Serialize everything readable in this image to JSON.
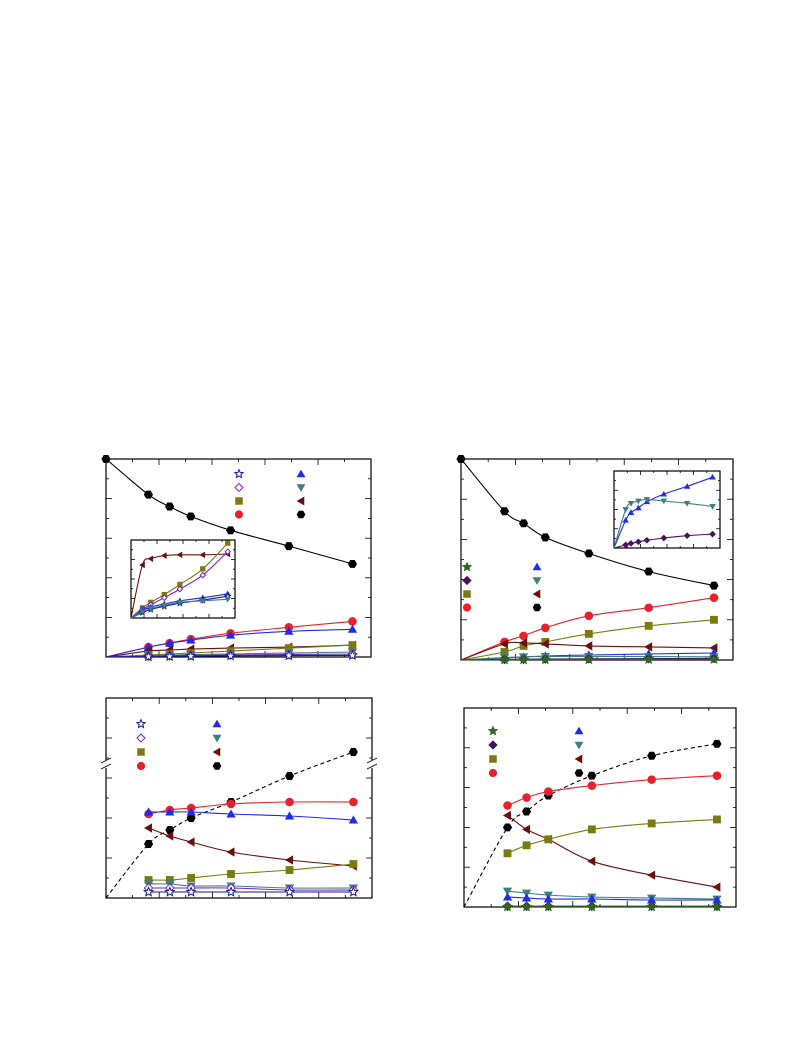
{
  "colors": {
    "black": "#000000",
    "red": "#e8212b",
    "blue": "#1f2bf0",
    "teal": "#3f7f7f",
    "olive": "#7a7a10",
    "darkred": "#6b0f0f",
    "purple": "#7a22c8",
    "darkpurple": "#4b1060",
    "navy": "#1a1a8c",
    "green": "#2a6a1a"
  },
  "chart_data": [
    {
      "id": "panel-top-left",
      "type": "scatter",
      "xlim": [
        0,
        10
      ],
      "ylim": [
        0,
        1
      ],
      "grid": false,
      "legend_position": "top-right",
      "series": [
        {
          "marker": "hexagon",
          "color": "black",
          "fill": true,
          "x": [
            0.0,
            1.6,
            2.4,
            3.2,
            4.7,
            6.9,
            9.3
          ],
          "y": [
            1.0,
            0.82,
            0.76,
            0.71,
            0.64,
            0.56,
            0.47
          ]
        },
        {
          "marker": "circle",
          "color": "red",
          "fill": true,
          "x": [
            0.0,
            1.6,
            2.4,
            3.2,
            4.7,
            6.9,
            9.3
          ],
          "y": [
            0.0,
            0.05,
            0.07,
            0.09,
            0.12,
            0.15,
            0.18
          ]
        },
        {
          "marker": "triangle-up",
          "color": "blue",
          "fill": true,
          "x": [
            0.0,
            1.6,
            2.4,
            3.2,
            4.7,
            6.9,
            9.3
          ],
          "y": [
            0.0,
            0.05,
            0.07,
            0.085,
            0.11,
            0.13,
            0.14
          ]
        },
        {
          "marker": "triangle-left",
          "color": "darkred",
          "fill": true,
          "x": [
            0.0,
            1.6,
            2.4,
            3.2,
            4.7,
            6.9,
            9.3
          ],
          "y": [
            0.0,
            0.03,
            0.035,
            0.04,
            0.045,
            0.05,
            0.06
          ]
        },
        {
          "marker": "square",
          "color": "olive",
          "fill": true,
          "x": [
            0.0,
            1.6,
            2.4,
            3.2,
            4.7,
            6.9,
            9.3
          ],
          "y": [
            0.0,
            0.01,
            0.015,
            0.02,
            0.03,
            0.045,
            0.06
          ]
        },
        {
          "marker": "triangle-down",
          "color": "teal",
          "fill": true,
          "x": [
            0.0,
            1.6,
            2.4,
            3.2,
            4.7,
            6.9,
            9.3
          ],
          "y": [
            0.0,
            0.006,
            0.009,
            0.012,
            0.015,
            0.02,
            0.025
          ]
        },
        {
          "marker": "diamond",
          "color": "purple",
          "fill": false,
          "x": [
            0.0,
            1.6,
            2.4,
            3.2,
            4.7,
            6.9,
            9.3
          ],
          "y": [
            0.0,
            0.004,
            0.006,
            0.008,
            0.01,
            0.013,
            0.015
          ]
        },
        {
          "marker": "star",
          "color": "navy",
          "fill": false,
          "x": [
            0.0,
            1.6,
            2.4,
            3.2,
            4.7,
            6.9,
            9.3
          ],
          "y": [
            0.0,
            0.002,
            0.003,
            0.004,
            0.006,
            0.007,
            0.008
          ]
        }
      ],
      "inset": {
        "xlim": [
          0,
          10
        ],
        "ylim": [
          0,
          1
        ],
        "series": [
          {
            "marker": "triangle-left",
            "color": "darkred",
            "fill": true,
            "x": [
              0,
              1.1,
              1.9,
              3.2,
              4.7,
              6.9,
              9.3
            ],
            "y": [
              0,
              0.68,
              0.76,
              0.8,
              0.81,
              0.81,
              0.82
            ]
          },
          {
            "marker": "square",
            "color": "olive",
            "fill": true,
            "x": [
              0,
              1.1,
              1.9,
              3.2,
              4.7,
              6.9,
              9.3
            ],
            "y": [
              0,
              0.13,
              0.2,
              0.3,
              0.43,
              0.63,
              0.96
            ]
          },
          {
            "marker": "diamond",
            "color": "purple",
            "fill": false,
            "x": [
              0,
              1.1,
              1.9,
              3.2,
              4.7,
              6.9,
              9.3
            ],
            "y": [
              0,
              0.11,
              0.17,
              0.26,
              0.37,
              0.55,
              0.85
            ]
          },
          {
            "marker": "triangle-up",
            "color": "blue",
            "fill": true,
            "x": [
              0,
              1.1,
              1.9,
              3.2,
              4.7,
              6.9,
              9.3
            ],
            "y": [
              0,
              0.1,
              0.14,
              0.18,
              0.22,
              0.26,
              0.31
            ]
          },
          {
            "marker": "star",
            "color": "navy",
            "fill": false,
            "x": [
              0,
              1.1,
              1.9,
              3.2,
              4.7,
              6.9,
              9.3
            ],
            "y": [
              0,
              0.07,
              0.11,
              0.15,
              0.19,
              0.23,
              0.28
            ]
          },
          {
            "marker": "triangle-down",
            "color": "teal",
            "fill": true,
            "x": [
              0,
              1.1,
              1.9,
              3.2,
              4.7,
              6.9,
              9.3
            ],
            "y": [
              0,
              0.08,
              0.12,
              0.16,
              0.2,
              0.22,
              0.24
            ]
          }
        ]
      }
    },
    {
      "id": "panel-top-right",
      "type": "scatter",
      "xlim": [
        0,
        10
      ],
      "ylim": [
        0,
        1
      ],
      "grid": false,
      "legend_position": "left-middle",
      "series": [
        {
          "marker": "hexagon",
          "color": "black",
          "fill": true,
          "x": [
            0.0,
            1.6,
            2.3,
            3.1,
            4.7,
            6.9,
            9.3
          ],
          "y": [
            1.0,
            0.74,
            0.68,
            0.61,
            0.53,
            0.44,
            0.37
          ]
        },
        {
          "marker": "circle",
          "color": "red",
          "fill": true,
          "x": [
            0.0,
            1.6,
            2.3,
            3.1,
            4.7,
            6.9,
            9.3
          ],
          "y": [
            0.0,
            0.09,
            0.12,
            0.16,
            0.22,
            0.26,
            0.31
          ]
        },
        {
          "marker": "square",
          "color": "olive",
          "fill": true,
          "x": [
            0.0,
            1.6,
            2.3,
            3.1,
            4.7,
            6.9,
            9.3
          ],
          "y": [
            0.0,
            0.04,
            0.07,
            0.09,
            0.13,
            0.17,
            0.2
          ]
        },
        {
          "marker": "triangle-left",
          "color": "darkred",
          "fill": true,
          "x": [
            0.0,
            1.6,
            2.3,
            3.1,
            4.7,
            6.9,
            9.3
          ],
          "y": [
            0.0,
            0.08,
            0.085,
            0.08,
            0.07,
            0.065,
            0.06
          ]
        },
        {
          "marker": "triangle-up",
          "color": "blue",
          "fill": true,
          "x": [
            0.0,
            1.6,
            2.3,
            3.1,
            4.7,
            6.9,
            9.3
          ],
          "y": [
            0.0,
            0.01,
            0.015,
            0.02,
            0.025,
            0.03,
            0.035
          ]
        },
        {
          "marker": "triangle-down",
          "color": "teal",
          "fill": true,
          "x": [
            0.0,
            1.6,
            2.3,
            3.1,
            4.7,
            6.9,
            9.3
          ],
          "y": [
            0.0,
            0.012,
            0.016,
            0.018,
            0.018,
            0.017,
            0.016
          ]
        },
        {
          "marker": "diamond",
          "color": "darkpurple",
          "fill": true,
          "x": [
            0.0,
            1.6,
            2.3,
            3.1,
            4.7,
            6.9,
            9.3
          ],
          "y": [
            0.0,
            0.003,
            0.004,
            0.005,
            0.006,
            0.007,
            0.008
          ]
        },
        {
          "marker": "star",
          "color": "green",
          "fill": true,
          "x": [
            0.0,
            1.6,
            2.3,
            3.1,
            4.7,
            6.9,
            9.3
          ],
          "y": [
            0.0,
            0.001,
            0.0015,
            0.002,
            0.0025,
            0.003,
            0.0035
          ]
        }
      ],
      "inset": {
        "xlim": [
          0,
          10
        ],
        "ylim": [
          0,
          1
        ],
        "series": [
          {
            "marker": "triangle-up",
            "color": "blue",
            "fill": true,
            "x": [
              0,
              1.1,
              1.6,
              2.3,
              3.1,
              4.7,
              6.9,
              9.3
            ],
            "y": [
              0,
              0.36,
              0.46,
              0.52,
              0.6,
              0.7,
              0.8,
              0.92
            ]
          },
          {
            "marker": "triangle-down",
            "color": "teal",
            "fill": true,
            "x": [
              0,
              1.1,
              1.6,
              2.3,
              3.1,
              4.7,
              6.9,
              9.3
            ],
            "y": [
              0,
              0.5,
              0.58,
              0.61,
              0.63,
              0.61,
              0.58,
              0.54
            ]
          },
          {
            "marker": "diamond",
            "color": "darkpurple",
            "fill": true,
            "x": [
              0,
              1.1,
              1.6,
              2.3,
              3.1,
              4.7,
              6.9,
              9.3
            ],
            "y": [
              0,
              0.04,
              0.06,
              0.08,
              0.1,
              0.13,
              0.16,
              0.18
            ]
          }
        ]
      }
    },
    {
      "id": "panel-bottom-left",
      "type": "scatter",
      "xlim": [
        0,
        10
      ],
      "ylim": [
        0,
        1
      ],
      "grid": false,
      "axis_break": true,
      "legend_position": "top-left",
      "series": [
        {
          "marker": "hexagon",
          "color": "black",
          "fill": true,
          "x": [
            0.0,
            1.6,
            2.4,
            3.2,
            4.7,
            6.9,
            9.3
          ],
          "y": [
            0.0,
            0.27,
            0.34,
            0.4,
            0.48,
            0.61,
            0.73
          ]
        },
        {
          "marker": "circle",
          "color": "red",
          "fill": true,
          "x": [
            1.6,
            2.4,
            3.2,
            4.7,
            6.9,
            9.3
          ],
          "y": [
            0.42,
            0.44,
            0.45,
            0.47,
            0.48,
            0.48
          ]
        },
        {
          "marker": "triangle-up",
          "color": "blue",
          "fill": true,
          "x": [
            1.6,
            2.4,
            3.2,
            4.7,
            6.9,
            9.3
          ],
          "y": [
            0.43,
            0.43,
            0.43,
            0.42,
            0.41,
            0.39
          ]
        },
        {
          "marker": "triangle-left",
          "color": "darkred",
          "fill": true,
          "x": [
            1.6,
            2.4,
            3.2,
            4.7,
            6.9,
            9.3
          ],
          "y": [
            0.35,
            0.31,
            0.28,
            0.23,
            0.19,
            0.16
          ]
        },
        {
          "marker": "square",
          "color": "olive",
          "fill": true,
          "x": [
            1.6,
            2.4,
            3.2,
            4.7,
            6.9,
            9.3
          ],
          "y": [
            0.09,
            0.09,
            0.1,
            0.12,
            0.14,
            0.17
          ]
        },
        {
          "marker": "triangle-down",
          "color": "teal",
          "fill": true,
          "x": [
            1.6,
            2.4,
            3.2,
            4.7,
            6.9,
            9.3
          ],
          "y": [
            0.07,
            0.07,
            0.06,
            0.06,
            0.05,
            0.05
          ]
        },
        {
          "marker": "diamond",
          "color": "purple",
          "fill": false,
          "x": [
            1.6,
            2.4,
            3.2,
            4.7,
            6.9,
            9.3
          ],
          "y": [
            0.05,
            0.05,
            0.05,
            0.05,
            0.04,
            0.04
          ]
        },
        {
          "marker": "star",
          "color": "navy",
          "fill": false,
          "x": [
            1.6,
            2.4,
            3.2,
            4.7,
            6.9,
            9.3
          ],
          "y": [
            0.03,
            0.03,
            0.03,
            0.03,
            0.03,
            0.03
          ]
        }
      ]
    },
    {
      "id": "panel-bottom-right",
      "type": "scatter",
      "xlim": [
        0,
        10
      ],
      "ylim": [
        0,
        1
      ],
      "grid": false,
      "legend_position": "top-left",
      "series": [
        {
          "marker": "hexagon",
          "color": "black",
          "fill": true,
          "x": [
            0.0,
            1.6,
            2.3,
            3.1,
            4.7,
            6.9,
            9.3
          ],
          "y": [
            0.0,
            0.4,
            0.48,
            0.56,
            0.66,
            0.76,
            0.82
          ]
        },
        {
          "marker": "circle",
          "color": "red",
          "fill": true,
          "x": [
            1.6,
            2.3,
            3.1,
            4.7,
            6.9,
            9.3
          ],
          "y": [
            0.51,
            0.55,
            0.58,
            0.61,
            0.64,
            0.66
          ]
        },
        {
          "marker": "triangle-left",
          "color": "darkred",
          "fill": true,
          "x": [
            1.6,
            2.3,
            3.1,
            4.7,
            6.9,
            9.3
          ],
          "y": [
            0.46,
            0.39,
            0.34,
            0.23,
            0.16,
            0.1
          ]
        },
        {
          "marker": "square",
          "color": "olive",
          "fill": true,
          "x": [
            1.6,
            2.3,
            3.1,
            4.7,
            6.9,
            9.3
          ],
          "y": [
            0.27,
            0.31,
            0.34,
            0.39,
            0.42,
            0.44
          ]
        },
        {
          "marker": "triangle-down",
          "color": "teal",
          "fill": true,
          "x": [
            1.6,
            2.3,
            3.1,
            4.7,
            6.9,
            9.3
          ],
          "y": [
            0.08,
            0.07,
            0.06,
            0.05,
            0.045,
            0.04
          ]
        },
        {
          "marker": "triangle-up",
          "color": "blue",
          "fill": true,
          "x": [
            1.6,
            2.3,
            3.1,
            4.7,
            6.9,
            9.3
          ],
          "y": [
            0.05,
            0.045,
            0.04,
            0.04,
            0.035,
            0.035
          ]
        },
        {
          "marker": "diamond",
          "color": "darkpurple",
          "fill": true,
          "x": [
            1.6,
            2.3,
            3.1,
            4.7,
            6.9,
            9.3
          ],
          "y": [
            0.004,
            0.004,
            0.004,
            0.004,
            0.004,
            0.004
          ]
        },
        {
          "marker": "star",
          "color": "green",
          "fill": true,
          "x": [
            1.6,
            2.3,
            3.1,
            4.7,
            6.9,
            9.3
          ],
          "y": [
            0.001,
            0.001,
            0.001,
            0.001,
            0.001,
            0.001
          ]
        }
      ]
    }
  ]
}
